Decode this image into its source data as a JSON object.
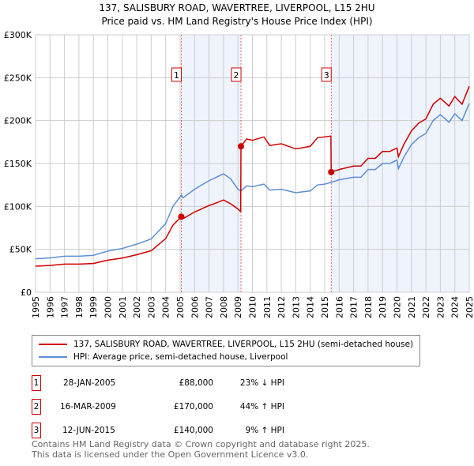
{
  "title": "137, SALISBURY ROAD, WAVERTREE, LIVERPOOL, L15 2HU",
  "subtitle": "Price paid vs. HM Land Registry's House Price Index (HPI)",
  "chart_data": {
    "type": "line",
    "xlim": [
      1995,
      2025
    ],
    "ylim": [
      0,
      300000
    ],
    "yticks": [
      0,
      50000,
      100000,
      150000,
      200000,
      250000,
      300000
    ],
    "ytick_labels": [
      "£0",
      "£50K",
      "£100K",
      "£150K",
      "£200K",
      "£250K",
      "£300K"
    ],
    "xtick_labels": [
      "1995",
      "1996",
      "1997",
      "1998",
      "1999",
      "2000",
      "2001",
      "2002",
      "2003",
      "2004",
      "2005",
      "2006",
      "2007",
      "2008",
      "2009",
      "2010",
      "2011",
      "2012",
      "2013",
      "2014",
      "2015",
      "2016",
      "2017",
      "2018",
      "2019",
      "2020",
      "2021",
      "2022",
      "2023",
      "2024",
      "2025"
    ],
    "grid": true,
    "shaded_ranges": [
      [
        2005.08,
        2009.21
      ],
      [
        2015.45,
        2025
      ]
    ],
    "series": [
      {
        "name": "137, SALISBURY ROAD, WAVERTREE, LIVERPOOL, L15 2HU (semi-detached house)",
        "color": "#cc0000",
        "x": [
          1995,
          1996,
          1997,
          1998,
          1999,
          2000,
          2001,
          2002,
          2003,
          2004,
          2004.5,
          2005.08,
          2005.2,
          2006,
          2007,
          2007.5,
          2008,
          2008.5,
          2009,
          2009.19,
          2009.21,
          2009.6,
          2010,
          2010.8,
          2011.2,
          2012,
          2013,
          2014,
          2014.5,
          2015,
          2015.43,
          2015.45,
          2016,
          2017,
          2017.5,
          2018,
          2018.5,
          2019,
          2019.5,
          2020,
          2020.1,
          2020.5,
          2021,
          2021.5,
          2022,
          2022.5,
          2023,
          2023.6,
          2024,
          2024.5,
          2025
        ],
        "y": [
          30400,
          31200,
          32800,
          32800,
          33500,
          37400,
          39800,
          43700,
          48400,
          62400,
          78000,
          88000,
          85700,
          93500,
          101000,
          104000,
          107500,
          103000,
          97000,
          94000,
          170000,
          178600,
          177000,
          181000,
          171000,
          173000,
          167000,
          170000,
          180000,
          181000,
          182000,
          140000,
          143000,
          147000,
          147000,
          156000,
          156000,
          164000,
          164000,
          168000,
          158000,
          173000,
          188000,
          197000,
          202000,
          219000,
          226000,
          217000,
          228000,
          219000,
          240000
        ]
      },
      {
        "name": "HPI: Average price, semi-detached house, Liverpool",
        "color": "#5b8fd6",
        "x": [
          1995,
          1996,
          1997,
          1998,
          1999,
          2000,
          2001,
          2002,
          2003,
          2004,
          2004.5,
          2005.08,
          2005.2,
          2006,
          2007,
          2007.5,
          2008,
          2008.5,
          2009,
          2009.2,
          2009.6,
          2010,
          2010.8,
          2011.2,
          2012,
          2013,
          2014,
          2014.5,
          2015,
          2015.45,
          2016,
          2017,
          2017.5,
          2018,
          2018.5,
          2019,
          2019.5,
          2020,
          2020.1,
          2020.5,
          2021,
          2021.5,
          2022,
          2022.5,
          2023,
          2023.6,
          2024,
          2024.5,
          2025
        ],
        "y": [
          39000,
          40000,
          42000,
          42000,
          43000,
          48000,
          51000,
          56000,
          62000,
          80000,
          100000,
          113000,
          110000,
          120000,
          130000,
          134000,
          138000,
          132000,
          120000,
          118000,
          124000,
          123000,
          126000,
          119000,
          120000,
          116000,
          118000,
          125000,
          126000,
          128000,
          131000,
          134000,
          134000,
          143000,
          143000,
          150000,
          150000,
          154000,
          144000,
          158000,
          172000,
          180000,
          185000,
          200000,
          207000,
          198000,
          208000,
          200000,
          220000
        ]
      }
    ],
    "sales": [
      {
        "label": "1",
        "x": 2005.08,
        "y": 88000,
        "date": "28-JAN-2005",
        "price": "£88,000",
        "hpi": "23% ↓ HPI"
      },
      {
        "label": "2",
        "x": 2009.21,
        "y": 170000,
        "date": "16-MAR-2009",
        "price": "£170,000",
        "hpi": "44% ↑ HPI"
      },
      {
        "label": "3",
        "x": 2015.45,
        "y": 140000,
        "date": "12-JUN-2015",
        "price": "£140,000",
        "hpi": "9% ↑ HPI"
      }
    ]
  },
  "footer": [
    "Contains HM Land Registry data © Crown copyright and database right 2025.",
    "This data is licensed under the Open Government Licence v3.0."
  ]
}
